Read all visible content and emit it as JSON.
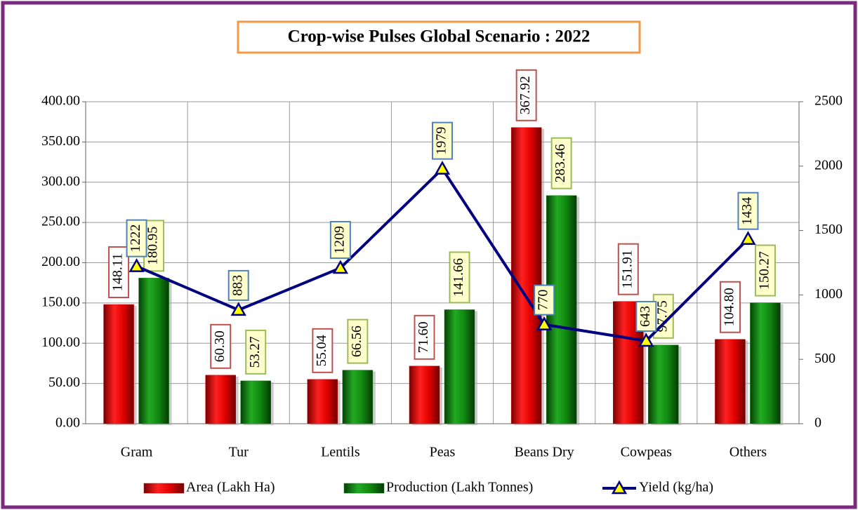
{
  "chart_data": {
    "type": "bar",
    "title": "Crop-wise Pulses Global Scenario : 2022",
    "categories": [
      "Gram",
      "Tur",
      "Lentils",
      "Peas",
      "Beans Dry",
      "Cowpeas",
      "Others"
    ],
    "series": [
      {
        "name": "Area (Lakh Ha)",
        "color": "#cc0000",
        "values": [
          148.11,
          60.3,
          55.04,
          71.6,
          367.92,
          151.91,
          104.8
        ],
        "value_labels": [
          "148.11",
          "60.30",
          "55.04",
          "71.60",
          "367.92",
          "151.91",
          "104.80"
        ]
      },
      {
        "name": "Production (Lakh Tonnes)",
        "color": "#118811",
        "values": [
          180.95,
          53.27,
          66.56,
          141.66,
          283.46,
          97.75,
          150.27
        ],
        "value_labels": [
          "180.95",
          "53.27",
          "66.56",
          "141.66",
          "283.46",
          "97.75",
          "150.27"
        ]
      },
      {
        "name": "Yield (kg/ha)",
        "color": "#000080",
        "type": "line",
        "axis": "y2",
        "values": [
          1222,
          883,
          1209,
          1979,
          770,
          643,
          1434
        ]
      }
    ],
    "ylim": [
      0,
      400
    ],
    "yticks": [
      {
        "value": 0,
        "label": "0.00"
      },
      {
        "value": 50,
        "label": "50.00"
      },
      {
        "value": 100,
        "label": "100.00"
      },
      {
        "value": 150,
        "label": "150.00"
      },
      {
        "value": 200,
        "label": "200.00"
      },
      {
        "value": 250,
        "label": "250.00"
      },
      {
        "value": 300,
        "label": "300.00"
      },
      {
        "value": 350,
        "label": "350.00"
      },
      {
        "value": 400,
        "label": "400.00"
      }
    ],
    "y2lim": [
      0,
      2500
    ],
    "y2ticks": [
      0,
      500,
      1000,
      1500,
      2000,
      2500
    ],
    "grid": true,
    "legend": "bottom"
  }
}
